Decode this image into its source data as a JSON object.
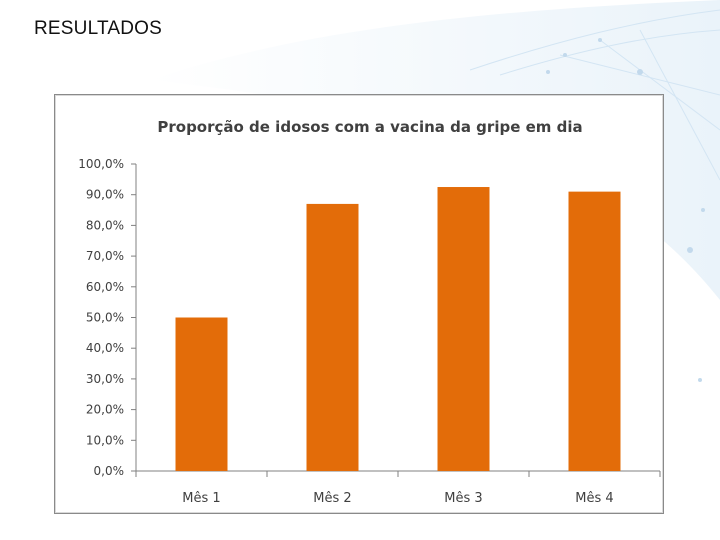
{
  "slide": {
    "title": "RESULTADOS"
  },
  "colors": {
    "bar": "#E36C09",
    "axis": "#808080",
    "decor_blue": "#cfe3f3"
  },
  "chart_data": {
    "type": "bar",
    "title": "Proporção de idosos com a vacina da gripe em dia",
    "categories": [
      "Mês 1",
      "Mês 2",
      "Mês 3",
      "Mês 4"
    ],
    "values": [
      50.0,
      87.0,
      92.5,
      91.0
    ],
    "ylim": [
      0,
      100
    ],
    "yticks": [
      "0,0%",
      "10,0%",
      "20,0%",
      "30,0%",
      "40,0%",
      "50,0%",
      "60,0%",
      "70,0%",
      "80,0%",
      "90,0%",
      "100,0%"
    ],
    "grid": false,
    "legend": "none"
  }
}
